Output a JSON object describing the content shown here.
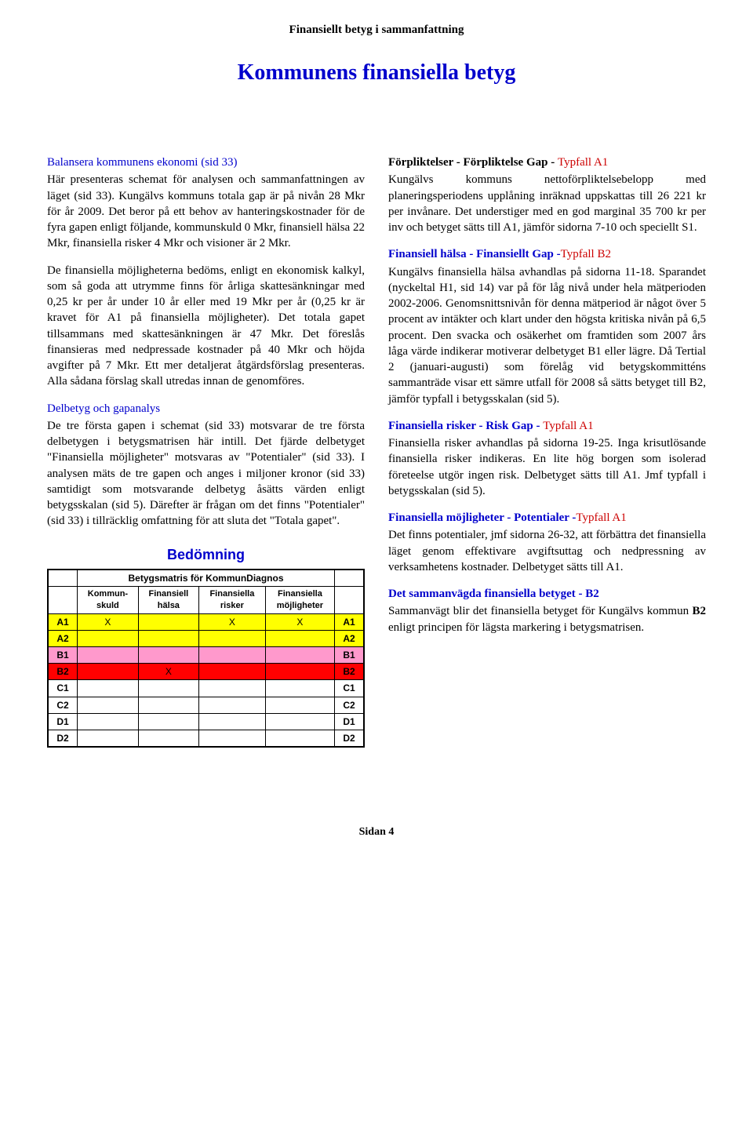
{
  "doc_header": "Finansiellt betyg i sammanfattning",
  "main_title": "Kommunens finansiella betyg",
  "left": {
    "h1": "Balansera kommunens ekonomi (sid 33)",
    "p1": "Här presenteras schemat för analysen och sammanfattningen av läget (sid 33). Kungälvs kommuns totala gap är på nivån 28 Mkr för år 2009. Det beror på ett behov av hanteringskostnader för de fyra gapen enligt följande, kommunskuld 0 Mkr, finansiell hälsa 22 Mkr, finansiella risker 4 Mkr och visioner är 2 Mkr.",
    "p2": "De finansiella möjligheterna bedöms, enligt en ekonomisk kalkyl, som så goda att utrymme finns för årliga skattesänkningar med 0,25 kr per år under 10 år eller med 19 Mkr per år (0,25 kr är kravet för A1 på finansiella möjligheter). Det totala gapet tillsammans med skattesänkningen är 47 Mkr. Det föreslås finansieras med nedpressade kostnader på 40 Mkr och höjda avgifter på 7 Mkr. Ett mer detaljerat åtgärdsförslag presenteras. Alla sådana förslag skall utredas innan de genomföres.",
    "h2": "Delbetyg och gapanalys",
    "p3": "De tre första gapen i schemat (sid 33) motsvarar de tre första delbetygen i betygsmatrisen här intill. Det fjärde delbetyget \"Finansiella möjligheter\" motsvaras av \"Potentialer\" (sid 33). I analysen mäts de tre gapen och anges i miljoner kronor (sid 33) samtidigt som motsvarande delbetyg åsätts värden enligt betygsskalan (sid 5). Därefter är frågan om det finns \"Potentialer\" (sid 33) i tillräcklig omfattning för att sluta det \"Totala gapet\"."
  },
  "right": {
    "h1a": "Förpliktelser - Förpliktelse Gap - ",
    "h1b": "Typfall A1",
    "p1": "Kungälvs kommuns nettoförpliktelsebelopp med planeringsperiodens upplåning inräknad uppskattas till 26 221 kr per invånare. Det understiger med en god marginal 35 700 kr per inv och betyget sätts till A1, jämför sidorna 7-10 och speciellt S1.",
    "h2a": "Finansiell hälsa - Finansiellt Gap -",
    "h2b": "Typfall B2",
    "p2": "Kungälvs finansiella hälsa avhandlas på sidorna 11-18. Sparandet (nyckeltal H1, sid 14) var på för låg nivå under hela mätperioden 2002-2006. Genomsnittsnivån för denna mätperiod är något över 5 procent av intäkter och klart under den högsta kritiska nivån på 6,5 procent. Den svacka och osäkerhet om framtiden som 2007 års låga värde indikerar motiverar delbetyget B1 eller lägre. Då Tertial 2 (januari-augusti) som förelåg vid betygskommitténs sammanträde visar ett sämre utfall för 2008 så sätts betyget till B2, jämför typfall i betygsskalan (sid 5).",
    "h3a": "Finansiella risker - Risk Gap - ",
    "h3b": "Typfall A1",
    "p3": "Finansiella risker avhandlas på sidorna 19-25. Inga krisutlösande finansiella risker indikeras. En lite hög borgen som isolerad företeelse utgör ingen risk. Delbetyget sätts till A1. Jmf typfall i betygsskalan (sid 5).",
    "h4a": "Finansiella möjligheter - Potentialer -",
    "h4b": "Typfall A1",
    "p4": "Det finns potentialer, jmf sidorna 26-32, att förbättra det finansiella läget genom effektivare avgiftsuttag och nedpressning av verksamhetens kostnader. Delbetyget sätts till A1.",
    "h5": "Det sammanvägda finansiella betyget - B2",
    "p5a": "Sammanvägt blir det finansiella betyget för Kungälvs kommun ",
    "p5b": "B2",
    "p5c": " enligt principen för lägsta markering i betygsmatrisen."
  },
  "matrix": {
    "title": "Bedömning",
    "header": "Betygsmatris för KommunDiagnos",
    "cols": [
      "Kommun-\nskuld",
      "Finansiell\nhälsa",
      "Finansiella\nrisker",
      "Finansiella\nmöjligheter"
    ],
    "rows": [
      {
        "grade": "A1",
        "cells": [
          "X",
          "",
          "X",
          "X"
        ],
        "color": "#ffff00"
      },
      {
        "grade": "A2",
        "cells": [
          "",
          "",
          "",
          ""
        ],
        "color": "#ffff00"
      },
      {
        "grade": "B1",
        "cells": [
          "",
          "",
          "",
          ""
        ],
        "color": "#ff99cc"
      },
      {
        "grade": "B2",
        "cells": [
          "",
          "X",
          "",
          ""
        ],
        "color": "#ff0000"
      },
      {
        "grade": "C1",
        "cells": [
          "",
          "",
          "",
          ""
        ],
        "color": "#ffffff"
      },
      {
        "grade": "C2",
        "cells": [
          "",
          "",
          "",
          ""
        ],
        "color": "#ffffff"
      },
      {
        "grade": "D1",
        "cells": [
          "",
          "",
          "",
          ""
        ],
        "color": "#ffffff"
      },
      {
        "grade": "D2",
        "cells": [
          "",
          "",
          "",
          ""
        ],
        "color": "#ffffff"
      }
    ]
  },
  "footer": "Sidan 4"
}
